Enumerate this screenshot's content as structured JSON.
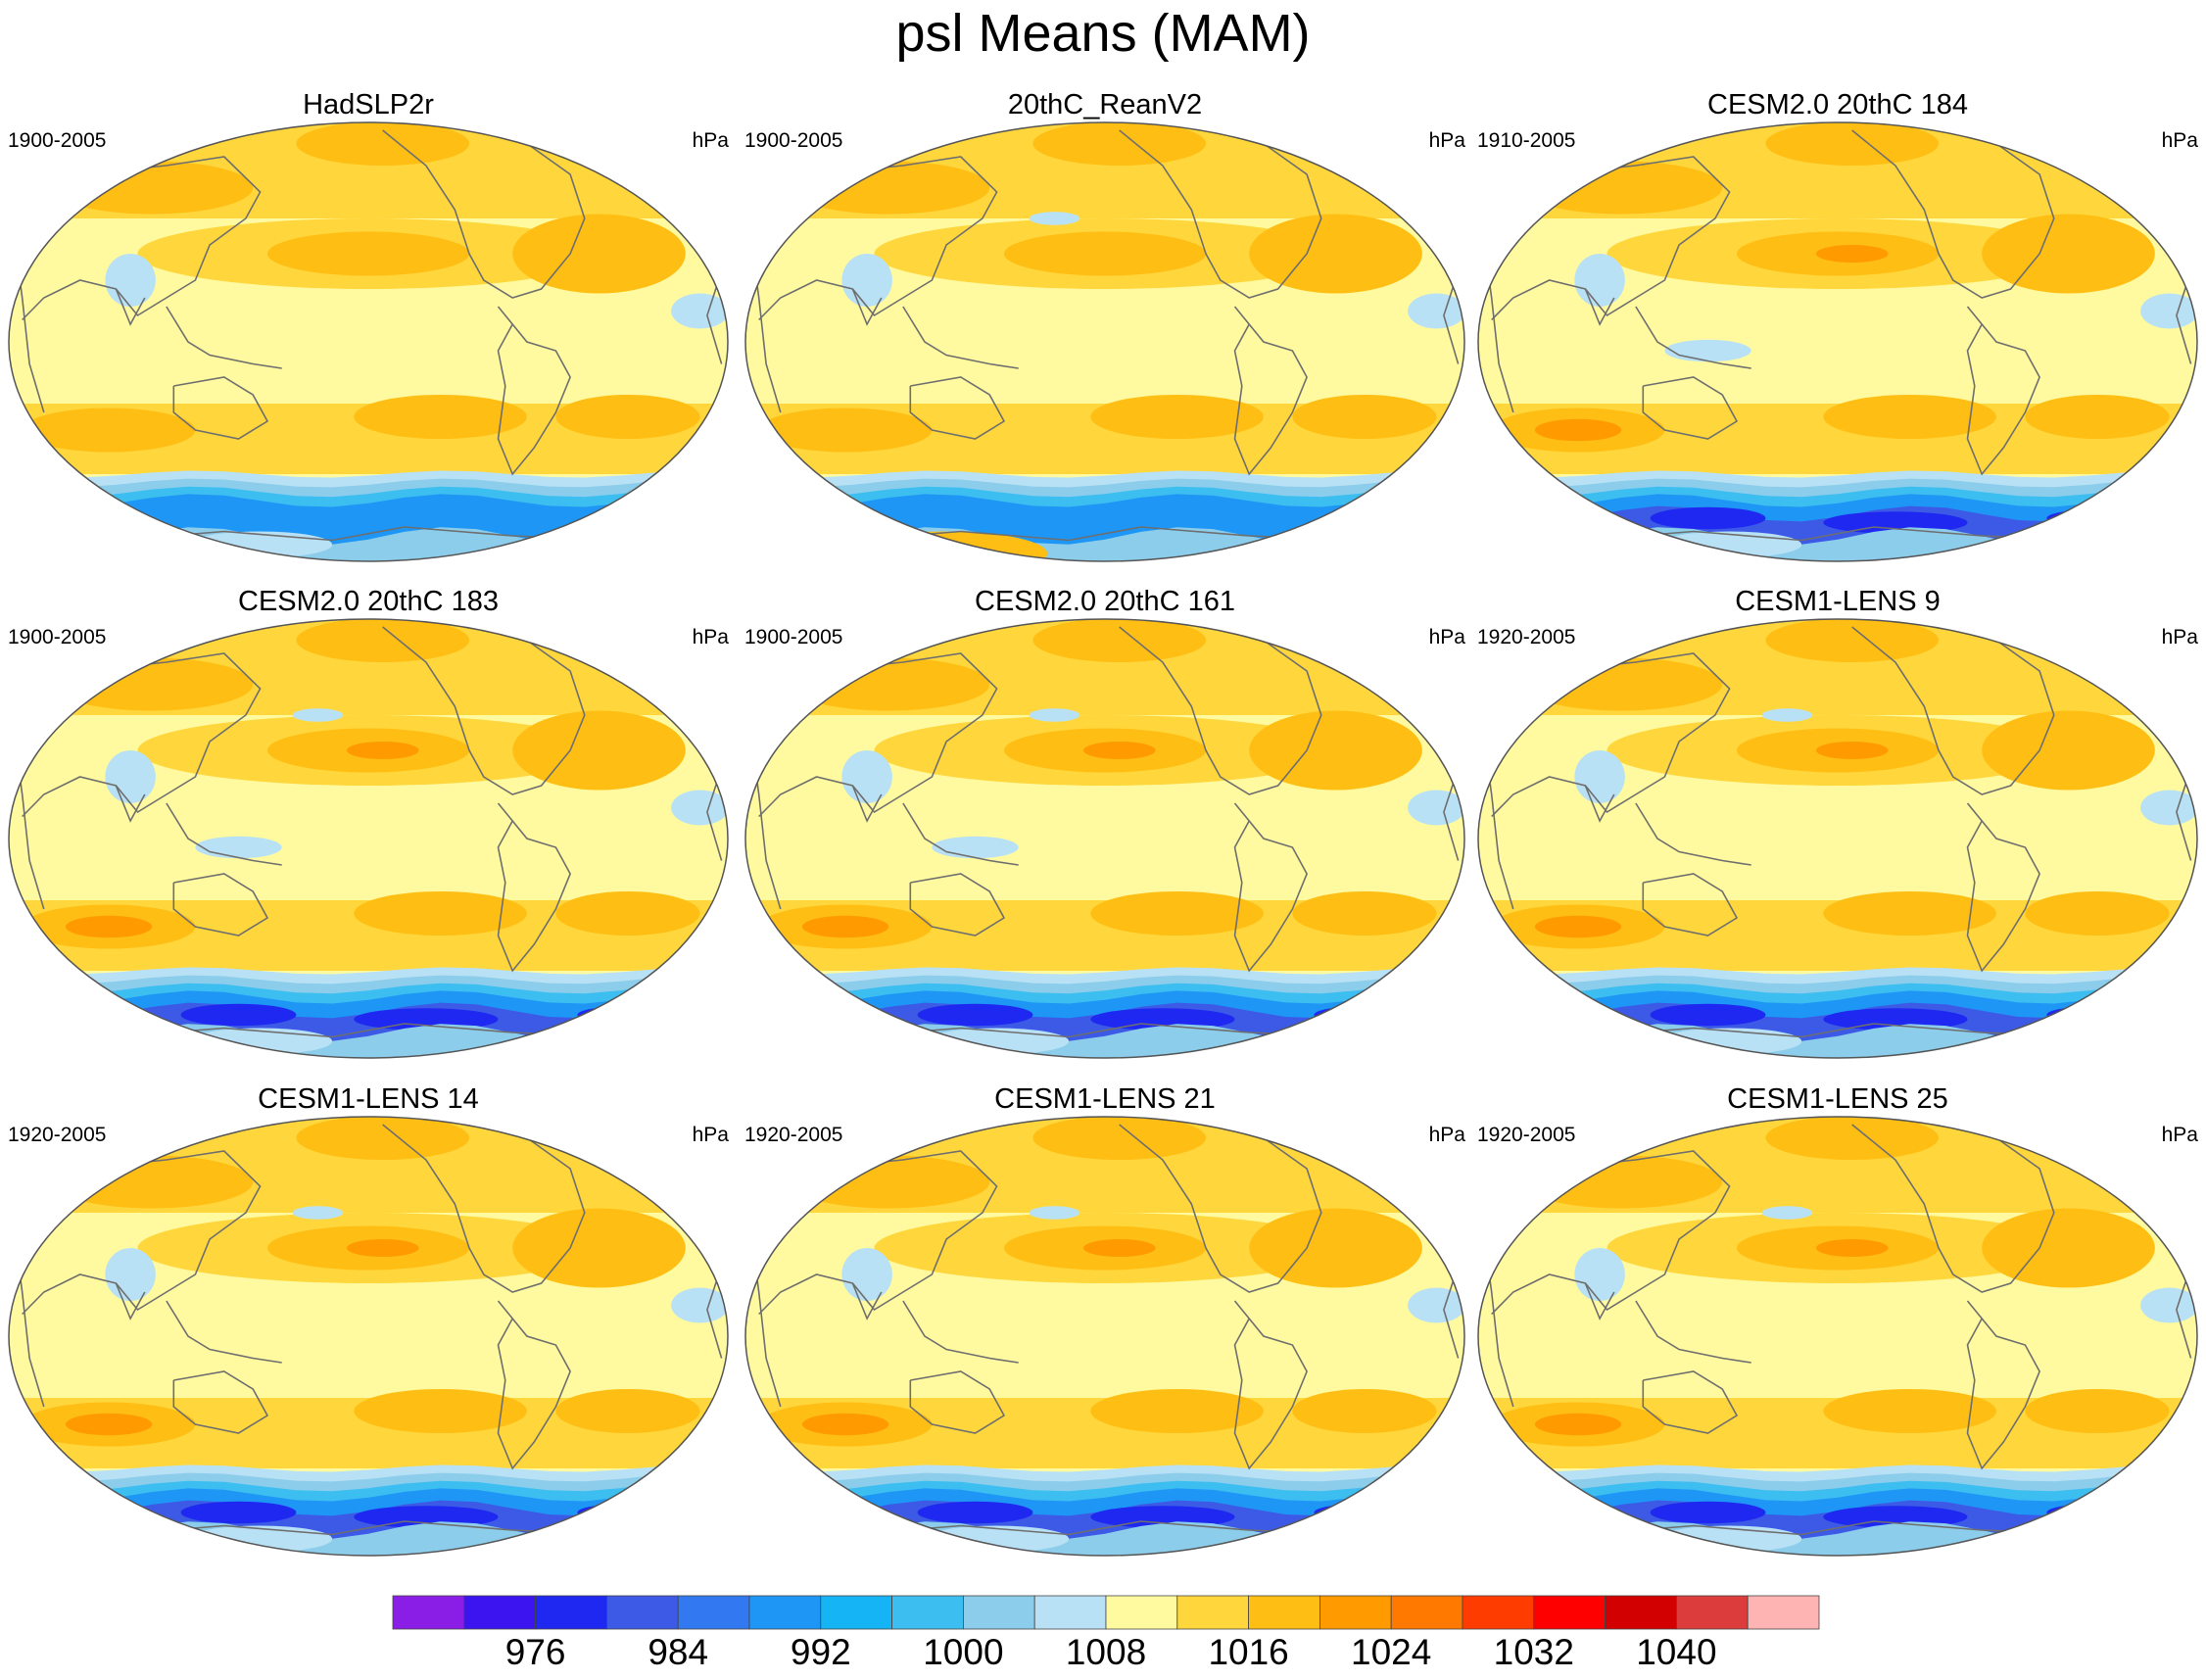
{
  "figure": {
    "title": "psl Means (MAM)",
    "units": "hPa"
  },
  "panels": [
    {
      "model": "HadSLP2r",
      "years": "1900-2005",
      "units": "hPa"
    },
    {
      "model": "20thC_ReanV2",
      "years": "1900-2005",
      "units": "hPa"
    },
    {
      "model": "CESM2.0 20thC 184",
      "years": "1910-2005",
      "units": "hPa"
    },
    {
      "model": "CESM2.0 20thC 183",
      "years": "1900-2005",
      "units": "hPa"
    },
    {
      "model": "CESM2.0 20thC 161",
      "years": "1900-2005",
      "units": "hPa"
    },
    {
      "model": "CESM1-LENS 9",
      "years": "1920-2005",
      "units": "hPa"
    },
    {
      "model": "CESM1-LENS 14",
      "years": "1920-2005",
      "units": "hPa"
    },
    {
      "model": "CESM1-LENS 21",
      "years": "1920-2005",
      "units": "hPa"
    },
    {
      "model": "CESM1-LENS 25",
      "years": "1920-2005",
      "units": "hPa"
    }
  ],
  "colorbar": {
    "colors": [
      "#8a1ee6",
      "#3c14f0",
      "#1e28f0",
      "#3c5ae6",
      "#3278f0",
      "#1e96f5",
      "#14b4f5",
      "#3cbef0",
      "#8ccdeb",
      "#b9e1f5",
      "#fffaa0",
      "#ffd73c",
      "#ffbe14",
      "#ff9b00",
      "#ff7800",
      "#ff3c00",
      "#ff0000",
      "#d20000",
      "#dc3c3c",
      "#ffb4b4"
    ],
    "tick_labels": [
      "976",
      "984",
      "992",
      "1000",
      "1008",
      "1016",
      "1024",
      "1032",
      "1040"
    ]
  },
  "map_colors": {
    "background": "#fffaa0",
    "light_orange": "#ffd73c",
    "orange": "#ffbe14",
    "dark_orange": "#ff9b00",
    "very_light_blue": "#b9e1f5",
    "light_blue": "#8ccdeb",
    "mid_blue": "#3cbef0",
    "blue": "#1e96f5",
    "deep_blue": "#3c5ae6",
    "darkest_blue": "#1e28f0",
    "coast": "#6e6e6e"
  }
}
